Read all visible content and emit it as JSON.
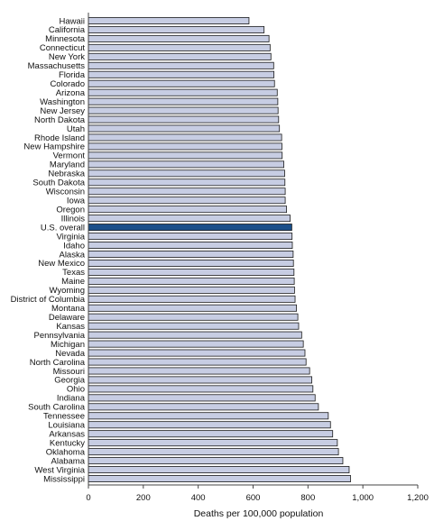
{
  "chart_data": {
    "type": "bar",
    "orientation": "horizontal",
    "xlabel": "Deaths per 100,000 population",
    "ylabel": "",
    "xlim": [
      0,
      1200
    ],
    "xticks": [
      0,
      200,
      400,
      600,
      800,
      1000,
      1200
    ],
    "xtick_labels": [
      "0",
      "200",
      "400",
      "600",
      "800",
      "1,000",
      "1,200"
    ],
    "grid": false,
    "highlight_category": "U.S. overall",
    "colors": {
      "bar": "#c7cde3",
      "highlight": "#1b4f8a",
      "stroke": "#1a1a1a",
      "axis": "#444444"
    },
    "categories": [
      "Hawaii",
      "California",
      "Minnesota",
      "Connecticut",
      "New York",
      "Massachusetts",
      "Florida",
      "Colorado",
      "Arizona",
      "Washington",
      "New Jersey",
      "North Dakota",
      "Utah",
      "Rhode Island",
      "New Hampshire",
      "Vermont",
      "Maryland",
      "Nebraska",
      "South Dakota",
      "Wisconsin",
      "Iowa",
      "Oregon",
      "Illinois",
      "U.S. overall",
      "Virginia",
      "Idaho",
      "Alaska",
      "New Mexico",
      "Texas",
      "Maine",
      "Wyoming",
      "District of Columbia",
      "Montana",
      "Delaware",
      "Kansas",
      "Pennsylvania",
      "Michigan",
      "Nevada",
      "North Carolina",
      "Missouri",
      "Georgia",
      "Ohio",
      "Indiana",
      "South Carolina",
      "Tennessee",
      "Louisiana",
      "Arkansas",
      "Kentucky",
      "Oklahoma",
      "Alabama",
      "West Virginia",
      "Mississippi"
    ],
    "values": [
      585,
      640,
      658,
      662,
      665,
      675,
      676,
      678,
      688,
      690,
      691,
      693,
      696,
      704,
      705,
      706,
      712,
      715,
      716,
      717,
      717,
      722,
      735,
      741,
      742,
      743,
      746,
      747,
      749,
      750,
      751,
      753,
      758,
      763,
      766,
      777,
      783,
      789,
      793,
      806,
      814,
      818,
      826,
      838,
      874,
      882,
      890,
      907,
      911,
      927,
      950,
      955
    ]
  }
}
